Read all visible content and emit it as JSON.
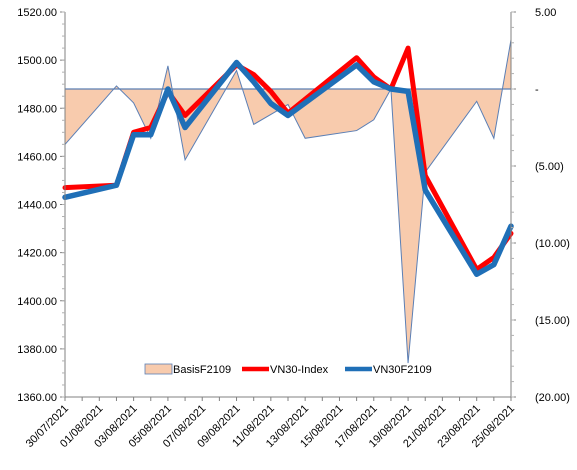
{
  "chart_data": {
    "type": "line",
    "title": "",
    "xlabel": "",
    "ylabel": "",
    "x_ticks": [
      "30/07/2021",
      "01/08/2021",
      "03/08/2021",
      "05/08/2021",
      "07/08/2021",
      "09/08/2021",
      "11/08/2021",
      "13/08/2021",
      "15/08/2021",
      "17/08/2021",
      "19/08/2021",
      "21/08/2021",
      "23/08/2021",
      "25/08/2021"
    ],
    "y_left": {
      "ylim": [
        1360,
        1520
      ],
      "ticks": [
        "1360.00",
        "1380.00",
        "1400.00",
        "1420.00",
        "1440.00",
        "1460.00",
        "1480.00",
        "1500.00",
        "1520.00"
      ]
    },
    "y_right": {
      "ylim": [
        -20,
        5
      ],
      "ticks": [
        "(20.00)",
        "(15.00)",
        "(10.00)",
        "(5.00)",
        "-",
        "5.00"
      ],
      "tick_values": [
        -20,
        -15,
        -10,
        -5,
        0,
        5
      ]
    },
    "legend_position": "bottom-center",
    "series": [
      {
        "name": "BasisF2109",
        "type": "area",
        "axis": "right",
        "color_fill": "#f8cbad",
        "color_line": "#5b7fb5",
        "x": [
          "30/07/2021",
          "02/08/2021",
          "03/08/2021",
          "04/08/2021",
          "05/08/2021",
          "06/08/2021",
          "09/08/2021",
          "10/08/2021",
          "12/08/2021",
          "13/08/2021",
          "16/08/2021",
          "17/08/2021",
          "18/08/2021",
          "19/08/2021",
          "20/08/2021",
          "23/08/2021",
          "24/08/2021",
          "25/08/2021"
        ],
        "values": [
          -3.6,
          0.2,
          -0.9,
          -3.2,
          1.5,
          -4.6,
          1.2,
          -2.3,
          -1.0,
          -3.2,
          -2.7,
          -2.0,
          0.0,
          -17.8,
          -5.4,
          -0.8,
          -3.2,
          3.2
        ]
      },
      {
        "name": "VN30-Index",
        "type": "line",
        "axis": "left",
        "color": "#ff0000",
        "x": [
          "30/07/2021",
          "02/08/2021",
          "03/08/2021",
          "04/08/2021",
          "05/08/2021",
          "06/08/2021",
          "09/08/2021",
          "10/08/2021",
          "11/08/2021",
          "12/08/2021",
          "16/08/2021",
          "17/08/2021",
          "18/08/2021",
          "19/08/2021",
          "20/08/2021",
          "23/08/2021",
          "24/08/2021",
          "25/08/2021"
        ],
        "values": [
          1447.0,
          1448.0,
          1470.0,
          1472.0,
          1487.0,
          1477.0,
          1498.0,
          1494.0,
          1487.0,
          1478.0,
          1501.0,
          1493.0,
          1488.0,
          1505.0,
          1452.0,
          1413.0,
          1418.0,
          1428.0
        ]
      },
      {
        "name": "VN30F2109",
        "type": "line",
        "axis": "left",
        "color": "#1f6fb7",
        "x": [
          "30/07/2021",
          "02/08/2021",
          "03/08/2021",
          "04/08/2021",
          "05/08/2021",
          "06/08/2021",
          "09/08/2021",
          "10/08/2021",
          "11/08/2021",
          "12/08/2021",
          "16/08/2021",
          "17/08/2021",
          "18/08/2021",
          "19/08/2021",
          "20/08/2021",
          "23/08/2021",
          "24/08/2021",
          "25/08/2021"
        ],
        "values": [
          1443.0,
          1448.0,
          1469.0,
          1469.0,
          1488.0,
          1472.0,
          1499.0,
          1491.0,
          1482.0,
          1477.0,
          1498.0,
          1491.0,
          1488.0,
          1487.0,
          1446.0,
          1411.0,
          1415.0,
          1431.0
        ]
      }
    ]
  }
}
